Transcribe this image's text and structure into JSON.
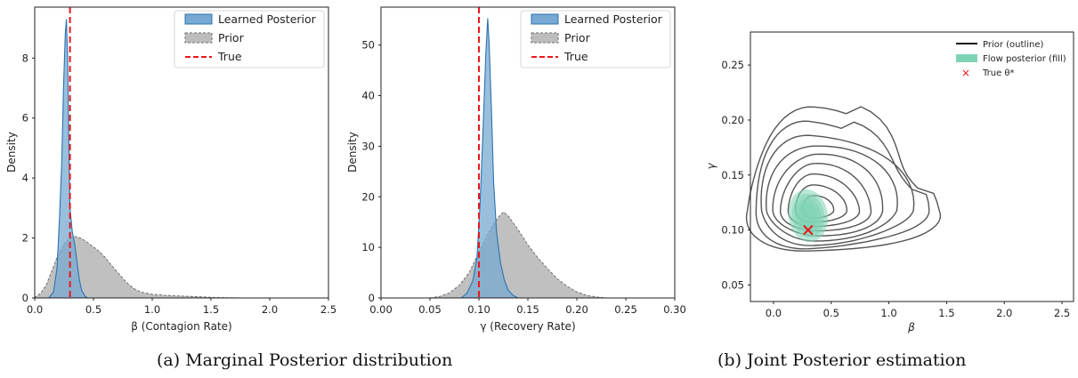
{
  "captions": {
    "a": "(a) Marginal Posterior distribution",
    "b": "(b) Joint Posterior estimation"
  },
  "colors": {
    "posterior_fill": "#78a9d2",
    "posterior_line": "#2c72b0",
    "prior_fill": "#bdbdbd",
    "prior_line": "#6e6e6e",
    "true_line": "#e8171b",
    "flow_fill": "#7fd3b5",
    "contour": "#555555"
  },
  "chart_data": [
    {
      "type": "area",
      "id": "beta",
      "xlabel": "β (Contagion Rate)",
      "ylabel": "Density",
      "xlim": [
        0,
        2.5
      ],
      "ylim": [
        0,
        9.7
      ],
      "xticks": [
        "0.0",
        "0.5",
        "1.0",
        "1.5",
        "2.0",
        "2.5"
      ],
      "xtick_values": [
        0,
        0.5,
        1.0,
        1.5,
        2.0,
        2.5
      ],
      "yticks": [
        "0",
        "2",
        "4",
        "6",
        "8"
      ],
      "ytick_values": [
        0,
        2,
        4,
        6,
        8
      ],
      "true_value": 0.3,
      "legend": [
        "Learned Posterior",
        "Prior",
        "True"
      ],
      "series": [
        {
          "name": "Learned Posterior",
          "points": [
            [
              0.12,
              0
            ],
            [
              0.16,
              0.2
            ],
            [
              0.19,
              1.0
            ],
            [
              0.21,
              2.6
            ],
            [
              0.23,
              4.5
            ],
            [
              0.245,
              7.0
            ],
            [
              0.26,
              8.8
            ],
            [
              0.27,
              9.3
            ],
            [
              0.28,
              8.0
            ],
            [
              0.29,
              5.2
            ],
            [
              0.3,
              3.0
            ],
            [
              0.32,
              2.2
            ],
            [
              0.34,
              1.8
            ],
            [
              0.36,
              1.2
            ],
            [
              0.38,
              0.6
            ],
            [
              0.4,
              0.25
            ],
            [
              0.43,
              0.05
            ],
            [
              0.45,
              0
            ]
          ]
        },
        {
          "name": "Prior",
          "points": [
            [
              0.0,
              0.02
            ],
            [
              0.05,
              0.15
            ],
            [
              0.1,
              0.45
            ],
            [
              0.15,
              0.95
            ],
            [
              0.2,
              1.45
            ],
            [
              0.25,
              1.8
            ],
            [
              0.3,
              2.0
            ],
            [
              0.35,
              2.05
            ],
            [
              0.4,
              1.98
            ],
            [
              0.45,
              1.85
            ],
            [
              0.5,
              1.7
            ],
            [
              0.55,
              1.55
            ],
            [
              0.6,
              1.35
            ],
            [
              0.65,
              1.1
            ],
            [
              0.7,
              0.88
            ],
            [
              0.75,
              0.65
            ],
            [
              0.8,
              0.45
            ],
            [
              0.85,
              0.3
            ],
            [
              0.9,
              0.2
            ],
            [
              1.0,
              0.12
            ],
            [
              1.1,
              0.09
            ],
            [
              1.2,
              0.07
            ],
            [
              1.3,
              0.055
            ],
            [
              1.4,
              0.04
            ],
            [
              1.5,
              0.02
            ],
            [
              1.6,
              0.01
            ],
            [
              1.7,
              0.005
            ],
            [
              1.8,
              0.0
            ]
          ]
        }
      ]
    },
    {
      "type": "area",
      "id": "gamma",
      "xlabel": "γ (Recovery Rate)",
      "ylabel": "Density",
      "xlim": [
        0,
        0.3
      ],
      "ylim": [
        0,
        57.5
      ],
      "xticks": [
        "0.00",
        "0.05",
        "0.10",
        "0.15",
        "0.20",
        "0.25",
        "0.30"
      ],
      "xtick_values": [
        0,
        0.05,
        0.1,
        0.15,
        0.2,
        0.25,
        0.3
      ],
      "yticks": [
        "0",
        "10",
        "20",
        "30",
        "40",
        "50"
      ],
      "ytick_values": [
        0,
        10,
        20,
        30,
        40,
        50
      ],
      "true_value": 0.1,
      "legend": [
        "Learned Posterior",
        "Prior",
        "True"
      ],
      "series": [
        {
          "name": "Learned Posterior",
          "points": [
            [
              0.082,
              0
            ],
            [
              0.088,
              1.0
            ],
            [
              0.094,
              3.5
            ],
            [
              0.098,
              8
            ],
            [
              0.101,
              18
            ],
            [
              0.104,
              32
            ],
            [
              0.107,
              48
            ],
            [
              0.109,
              55.3
            ],
            [
              0.1105,
              50
            ],
            [
              0.113,
              36
            ],
            [
              0.115,
              23
            ],
            [
              0.118,
              13
            ],
            [
              0.122,
              7
            ],
            [
              0.126,
              3.5
            ],
            [
              0.13,
              1.5
            ],
            [
              0.135,
              0.5
            ],
            [
              0.14,
              0
            ]
          ]
        },
        {
          "name": "Prior",
          "points": [
            [
              0.05,
              0
            ],
            [
              0.06,
              0.3
            ],
            [
              0.07,
              1.0
            ],
            [
              0.08,
              2.5
            ],
            [
              0.09,
              5
            ],
            [
              0.1,
              9
            ],
            [
              0.11,
              13
            ],
            [
              0.12,
              16
            ],
            [
              0.125,
              17
            ],
            [
              0.13,
              16.2
            ],
            [
              0.14,
              13.5
            ],
            [
              0.15,
              10.5
            ],
            [
              0.16,
              8
            ],
            [
              0.17,
              5.8
            ],
            [
              0.18,
              3.8
            ],
            [
              0.19,
              2.3
            ],
            [
              0.2,
              1.2
            ],
            [
              0.21,
              0.5
            ],
            [
              0.22,
              0.2
            ],
            [
              0.23,
              0
            ]
          ]
        }
      ]
    },
    {
      "type": "contour",
      "id": "joint",
      "xlabel": "β",
      "ylabel": "γ",
      "xlim": [
        -0.2,
        2.6
      ],
      "ylim": [
        0.035,
        0.28
      ],
      "xticks": [
        "0.0",
        "0.5",
        "1.0",
        "1.5",
        "2.0",
        "2.5"
      ],
      "xtick_values": [
        0,
        0.5,
        1.0,
        1.5,
        2.0,
        2.5
      ],
      "yticks": [
        "0.05",
        "0.10",
        "0.15",
        "0.20",
        "0.25"
      ],
      "ytick_values": [
        0.05,
        0.1,
        0.15,
        0.2,
        0.25
      ],
      "true_point": [
        0.3,
        0.1
      ],
      "legend": [
        "Prior (outline)",
        "Flow posterior (fill)",
        "True θ*"
      ],
      "prior_contour_levels": 9,
      "flow_posterior_center": [
        0.3,
        0.113
      ]
    }
  ]
}
